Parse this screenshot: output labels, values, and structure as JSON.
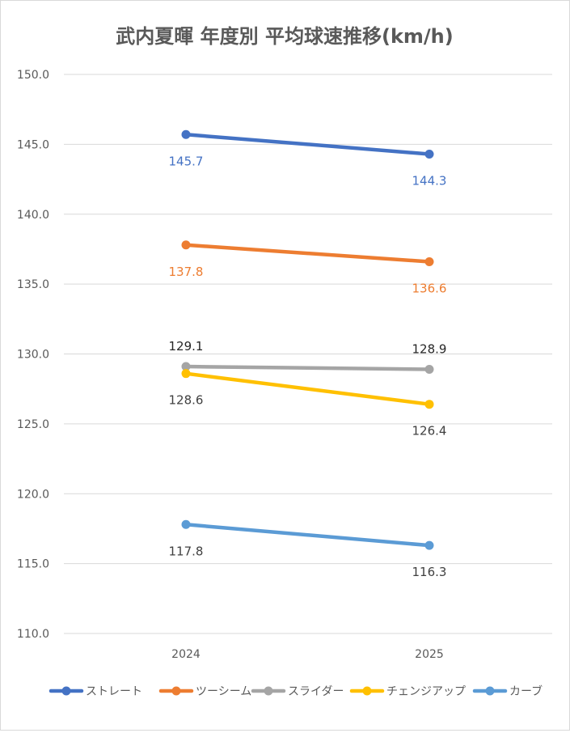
{
  "chart_data": {
    "type": "line",
    "title": "武内夏暉 年度別 平均球速推移(km/h)",
    "xlabel": "",
    "ylabel": "",
    "x": [
      "2024",
      "2025"
    ],
    "ylim": [
      110.0,
      150.0
    ],
    "yticks": [
      "150.0",
      "145.0",
      "140.0",
      "135.0",
      "130.0",
      "125.0",
      "120.0",
      "115.0",
      "110.0"
    ],
    "grid": true,
    "legend_position": "bottom",
    "series": [
      {
        "name": "ストレート",
        "values": [
          145.7,
          144.3
        ],
        "labels": [
          "145.7",
          "144.3"
        ],
        "color": "#4472c4",
        "label_color": "#4472c4",
        "label_side": [
          "below",
          "below"
        ]
      },
      {
        "name": "ツーシーム",
        "values": [
          137.8,
          136.6
        ],
        "labels": [
          "137.8",
          "136.6"
        ],
        "color": "#ed7d31",
        "label_color": "#ed7d31",
        "label_side": [
          "below",
          "below"
        ]
      },
      {
        "name": "スライダー",
        "values": [
          129.1,
          128.9
        ],
        "labels": [
          "129.1",
          "128.9"
        ],
        "color": "#a5a5a5",
        "label_color": "#262626",
        "label_side": [
          "above",
          "above"
        ]
      },
      {
        "name": "チェンジアップ",
        "values": [
          128.6,
          126.4
        ],
        "labels": [
          "128.6",
          "126.4"
        ],
        "color": "#ffc000",
        "label_color": "#404040",
        "label_side": [
          "below",
          "below"
        ]
      },
      {
        "name": "カーブ",
        "values": [
          117.8,
          116.3
        ],
        "labels": [
          "117.8",
          "116.3"
        ],
        "color": "#5b9bd5",
        "label_color": "#404040",
        "label_side": [
          "below",
          "below"
        ]
      }
    ]
  }
}
